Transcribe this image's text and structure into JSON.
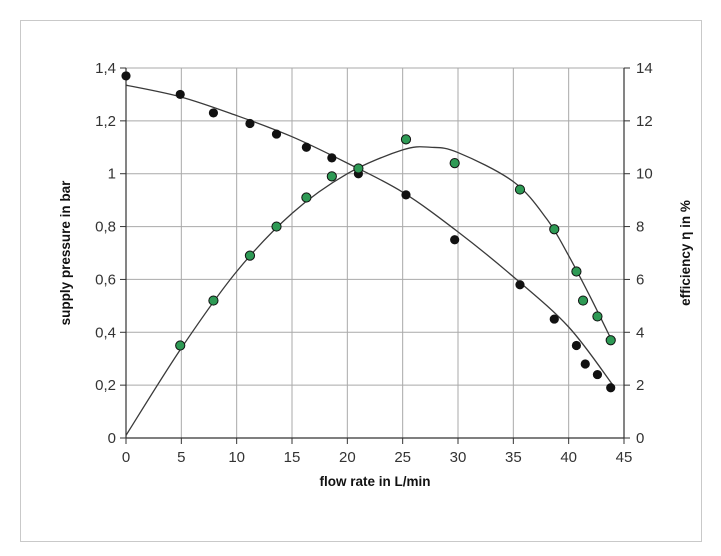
{
  "chart_data": {
    "type": "scatter",
    "xlabel": "flow rate in L/min",
    "ylabel_left": "supply pressure in bar",
    "ylabel_right": "efficiency η in %",
    "xlim": [
      0,
      45
    ],
    "ylim_left": [
      0,
      1.4
    ],
    "ylim_right": [
      0,
      14
    ],
    "x_ticks": [
      "0",
      "5",
      "10",
      "15",
      "20",
      "25",
      "30",
      "35",
      "40",
      "45"
    ],
    "y_left_ticks": [
      "0",
      "0,2",
      "0,4",
      "0,6",
      "0,8",
      "1",
      "1,2",
      "1,4"
    ],
    "y_right_ticks": [
      "0",
      "2",
      "4",
      "6",
      "8",
      "10",
      "12",
      "14"
    ],
    "grid": true,
    "series": [
      {
        "axis": "left",
        "color": "#111111",
        "x": [
          0,
          4.9,
          7.9,
          11.2,
          13.6,
          16.3,
          18.6,
          21.0,
          25.3,
          29.7,
          35.6,
          38.7,
          40.7,
          41.5,
          42.6,
          43.8
        ],
        "y": [
          1.37,
          1.3,
          1.23,
          1.19,
          1.15,
          1.1,
          1.06,
          1.0,
          0.92,
          0.75,
          0.58,
          0.45,
          0.35,
          0.28,
          0.24,
          0.19
        ]
      },
      {
        "axis": "right",
        "color": "#2e9a55",
        "x": [
          4.9,
          7.9,
          11.2,
          13.6,
          16.3,
          18.6,
          21.0,
          25.3,
          29.7,
          35.6,
          38.7,
          40.7,
          41.3,
          42.6,
          43.8
        ],
        "y": [
          3.5,
          5.2,
          6.9,
          8.0,
          9.1,
          9.9,
          10.2,
          11.3,
          10.4,
          9.4,
          7.9,
          6.3,
          5.2,
          4.6,
          3.7
        ]
      }
    ],
    "fit_curves": [
      {
        "axis": "left",
        "x": [
          0,
          5,
          10,
          15,
          20,
          25,
          30,
          35,
          40,
          44
        ],
        "y": [
          1.335,
          1.29,
          1.22,
          1.14,
          1.04,
          0.93,
          0.78,
          0.61,
          0.42,
          0.2
        ]
      },
      {
        "axis": "right",
        "x": [
          0,
          5,
          10,
          15,
          20,
          25,
          27.5,
          30,
          35,
          38,
          40,
          42,
          44
        ],
        "y": [
          0.1,
          3.4,
          6.3,
          8.5,
          10.0,
          10.9,
          11.0,
          10.8,
          9.7,
          8.3,
          6.9,
          5.3,
          3.6
        ]
      }
    ]
  }
}
